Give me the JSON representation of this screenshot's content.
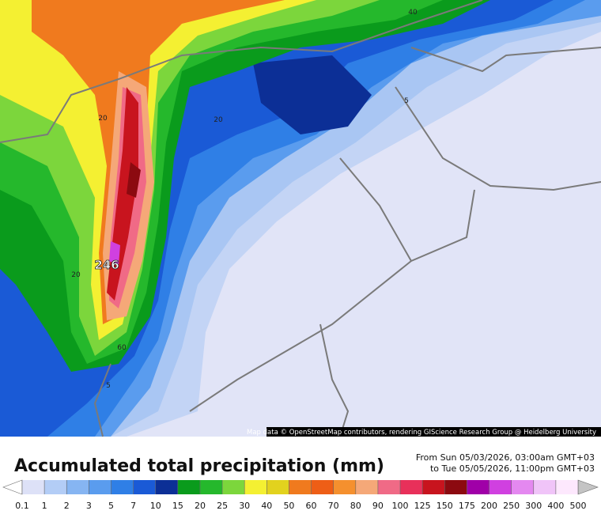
{
  "map": {
    "labels": [
      40,
      5,
      20,
      20,
      20,
      246,
      60,
      5
    ],
    "attribution": "Map data © OpenStreetMap contributors, rendering GIScience Research Group @ Heidelberg University"
  },
  "header": {
    "title": "Accumulated total precipitation (mm)",
    "from": "From Sun 05/03/2026, 03:00am GMT+03",
    "to": "to Tue 05/05/2026, 11:00pm GMT+03"
  },
  "legend": {
    "ticks": [
      0.1,
      1,
      2,
      3,
      5,
      7,
      10,
      15,
      20,
      25,
      30,
      40,
      50,
      60,
      70,
      80,
      90,
      100,
      125,
      150,
      175,
      200,
      250,
      300,
      400,
      500
    ],
    "colors": [
      "#dde1f7",
      "#b3cdf6",
      "#86b5f2",
      "#5a9cee",
      "#2f7fe6",
      "#1a5ad6",
      "#0c2f96",
      "#0a9b1c",
      "#25b82c",
      "#7cd63c",
      "#f4f032",
      "#e2d21e",
      "#f07a1e",
      "#ee5e16",
      "#f5902e",
      "#f5a878",
      "#f06a86",
      "#e8305a",
      "#c8141e",
      "#8c0a10",
      "#a000a8",
      "#d040e0",
      "#e488f0",
      "#f0c4f8",
      "#fde8fd"
    ],
    "below_color": "#ffffff",
    "above_color": "#c4c4c4"
  }
}
